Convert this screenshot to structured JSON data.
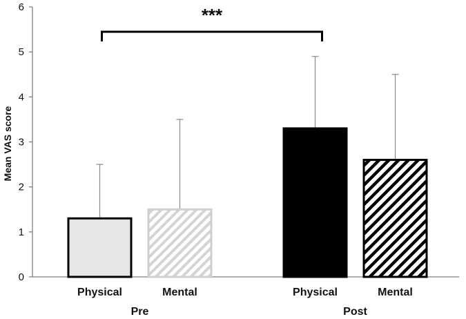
{
  "chart_data": {
    "type": "bar",
    "ylabel": "Mean VAS score",
    "ylim": [
      0,
      6
    ],
    "yticks": [
      0,
      1,
      2,
      3,
      4,
      5,
      6
    ],
    "grid": false,
    "groups": [
      {
        "label": "Pre",
        "bars": [
          {
            "category": "Physical",
            "value": 1.3,
            "error": 1.2,
            "fill": "#e6e6e6",
            "pattern": "solid"
          },
          {
            "category": "Mental",
            "value": 1.5,
            "error": 2.0,
            "fill": "#f2f2f2",
            "pattern": "light-hatch"
          }
        ]
      },
      {
        "label": "Post",
        "bars": [
          {
            "category": "Physical",
            "value": 3.3,
            "error": 1.6,
            "fill": "#000000",
            "pattern": "solid"
          },
          {
            "category": "Mental",
            "value": 2.6,
            "error": 1.9,
            "fill": "#ffffff",
            "pattern": "dark-hatch"
          }
        ]
      }
    ],
    "significance": {
      "label": "***",
      "between": [
        "Pre Physical",
        "Post Physical"
      ]
    }
  }
}
